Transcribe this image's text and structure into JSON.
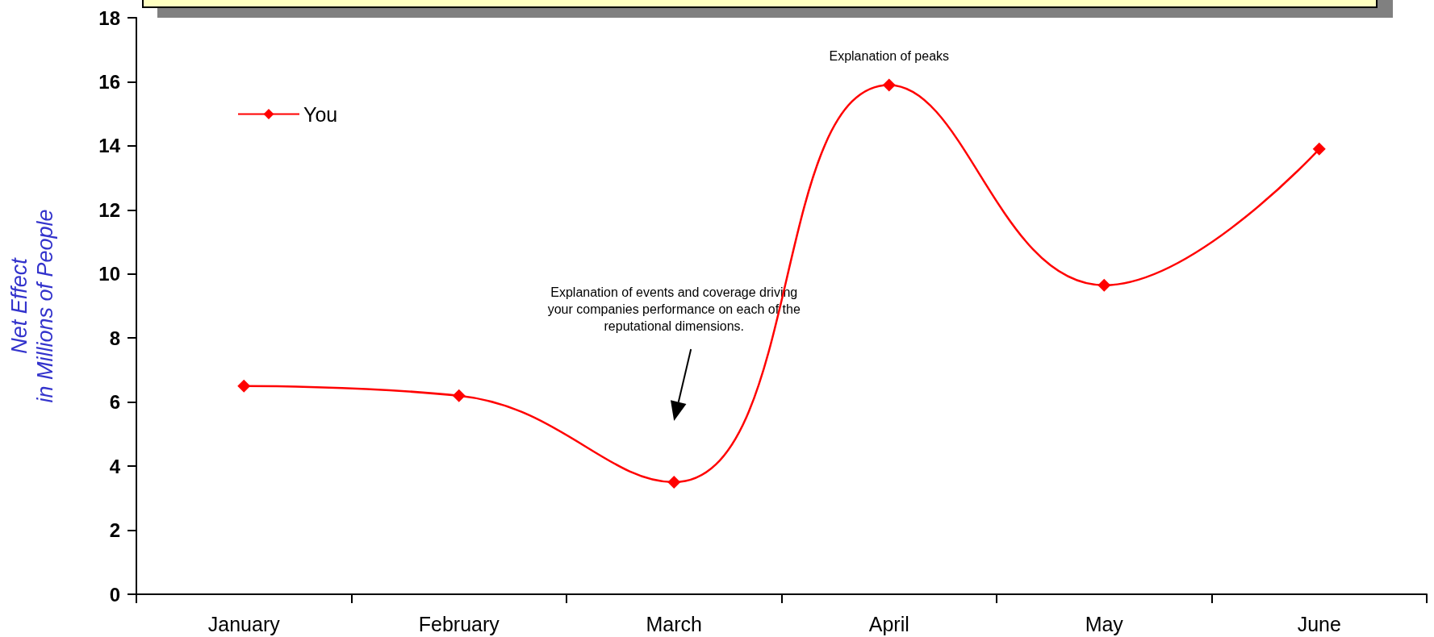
{
  "chart_data": {
    "type": "line",
    "ylabel": "Net Effect\nin Millions of People",
    "categories": [
      "January",
      "February",
      "March",
      "April",
      "May",
      "June"
    ],
    "series": [
      {
        "name": "You",
        "color": "#ff0000",
        "values": [
          6.5,
          6.2,
          3.5,
          15.9,
          9.65,
          13.9
        ]
      }
    ],
    "ylim": [
      0,
      18
    ],
    "yticks": [
      0,
      2,
      4,
      6,
      8,
      10,
      12,
      14,
      16,
      18
    ],
    "grid": false,
    "legend": "top left",
    "marker": "diamond",
    "line_style": "solid",
    "annotations": [
      "Explanation of peaks",
      "Explanation of events and coverage driving\nyour companies performance on each of the\nreputational dimensions."
    ]
  }
}
